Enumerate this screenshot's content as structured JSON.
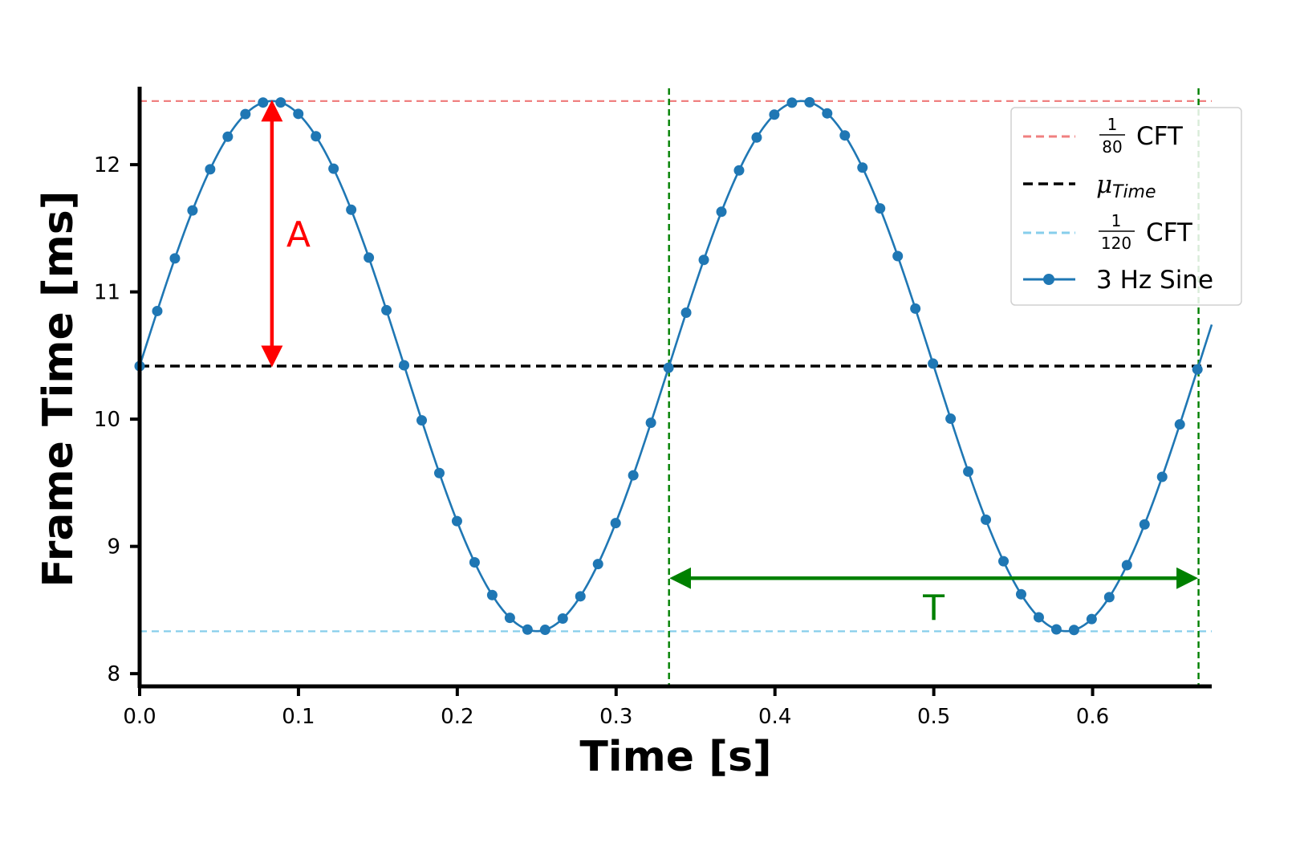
{
  "chart_data": {
    "type": "line",
    "xlabel": "Time [s]",
    "ylabel": "Frame Time [ms]",
    "xlim": [
      0.0,
      0.675
    ],
    "ylim": [
      7.9,
      12.6
    ],
    "xticks": [
      "0.0",
      "0.1",
      "0.2",
      "0.3",
      "0.4",
      "0.5",
      "0.6"
    ],
    "yticks": [
      "8",
      "9",
      "10",
      "11",
      "12"
    ],
    "grid": false,
    "legend_position": "top-right",
    "series": [
      {
        "name": "3 Hz Sine",
        "frequency_hz": 3,
        "mean": 10.417,
        "amplitude": 2.083,
        "color": "#1f77b4",
        "sample_interval_s": 0.0111,
        "x_range": [
          0.0,
          0.675
        ]
      }
    ],
    "reference_lines": [
      {
        "label_num": "1",
        "label_den": "80",
        "label_suffix": "CFT",
        "y": 12.5,
        "color": "#f08080",
        "style": "dashed"
      },
      {
        "label_main": "μ",
        "label_sub": "Time",
        "y": 10.417,
        "color": "#000000",
        "style": "dashed"
      },
      {
        "label_num": "1",
        "label_den": "120",
        "label_suffix": "CFT",
        "y": 8.333,
        "color": "#87ceeb",
        "style": "dashed"
      }
    ],
    "vertical_lines": [
      {
        "x": 0.3333,
        "color": "#008000",
        "style": "dashed"
      },
      {
        "x": 0.6667,
        "color": "#008000",
        "style": "dashed"
      }
    ],
    "annotations": [
      {
        "text": "A",
        "color": "#ff0000",
        "x": 0.0833,
        "y_from": 10.417,
        "y_to": 12.5,
        "orientation": "vertical"
      },
      {
        "text": "T",
        "color": "#008000",
        "y": 8.75,
        "x_from": 0.3333,
        "x_to": 0.6667,
        "orientation": "horizontal"
      }
    ]
  }
}
